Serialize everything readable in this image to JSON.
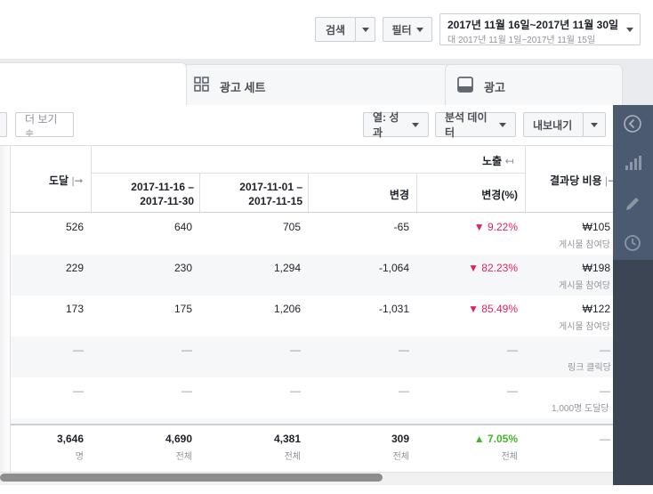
{
  "header": {
    "search_label": "검색",
    "filter_label": "필터",
    "date_main": "2017년 11월 16일~2017년 11월 30일",
    "date_compare": "대 2017년 11월 1일~2017년 11월 15일"
  },
  "tabs": [
    {
      "label": "광고 세트",
      "icon": "grid-icon"
    },
    {
      "label": "광고",
      "icon": "ad-icon"
    }
  ],
  "toolbar": {
    "more_label": "더 보기 ≑",
    "columns_label": "열: 성과",
    "breakdown_label": "분석 데이터",
    "export_label": "내보내기"
  },
  "table": {
    "col_reach": "도달",
    "group_impressions": "노출",
    "col_period1": [
      "2017-11-16 –",
      "2017-11-30"
    ],
    "col_period2": [
      "2017-11-01 –",
      "2017-11-15"
    ],
    "col_change": "변경",
    "col_change_pct": "변경(%)",
    "col_cost": "결과당 비용",
    "rows": [
      {
        "reach": "526",
        "p1": "640",
        "p2": "705",
        "change": "-65",
        "pct": "9.22%",
        "cost": "₩105",
        "cost_sub": "게시물 참여당"
      },
      {
        "reach": "229",
        "p1": "230",
        "p2": "1,294",
        "change": "-1,064",
        "pct": "82.23%",
        "cost": "₩198",
        "cost_sub": "게시물 참여당"
      },
      {
        "reach": "173",
        "p1": "175",
        "p2": "1,206",
        "change": "-1,031",
        "pct": "85.49%",
        "cost": "₩122",
        "cost_sub": "게시물 참여당"
      },
      {
        "reach": "—",
        "p1": "—",
        "p2": "—",
        "change": "—",
        "pct": "—",
        "cost": "—",
        "cost_sub": "링크 클릭당"
      },
      {
        "reach": "—",
        "p1": "—",
        "p2": "—",
        "change": "—",
        "pct": "—",
        "cost": "—",
        "cost_sub": "1,000명 도달당"
      }
    ],
    "totals": {
      "reach": "3,646",
      "reach_sub": "명",
      "p1": "4,690",
      "p1_sub": "전체",
      "p2": "4,381",
      "p2_sub": "전체",
      "change": "309",
      "change_sub": "전체",
      "pct": "7.05%",
      "pct_sub": "전체",
      "cost": "—"
    }
  },
  "colors": {
    "down": "#e0245e",
    "up": "#42b72a",
    "sidebar": "#4b5a70"
  }
}
